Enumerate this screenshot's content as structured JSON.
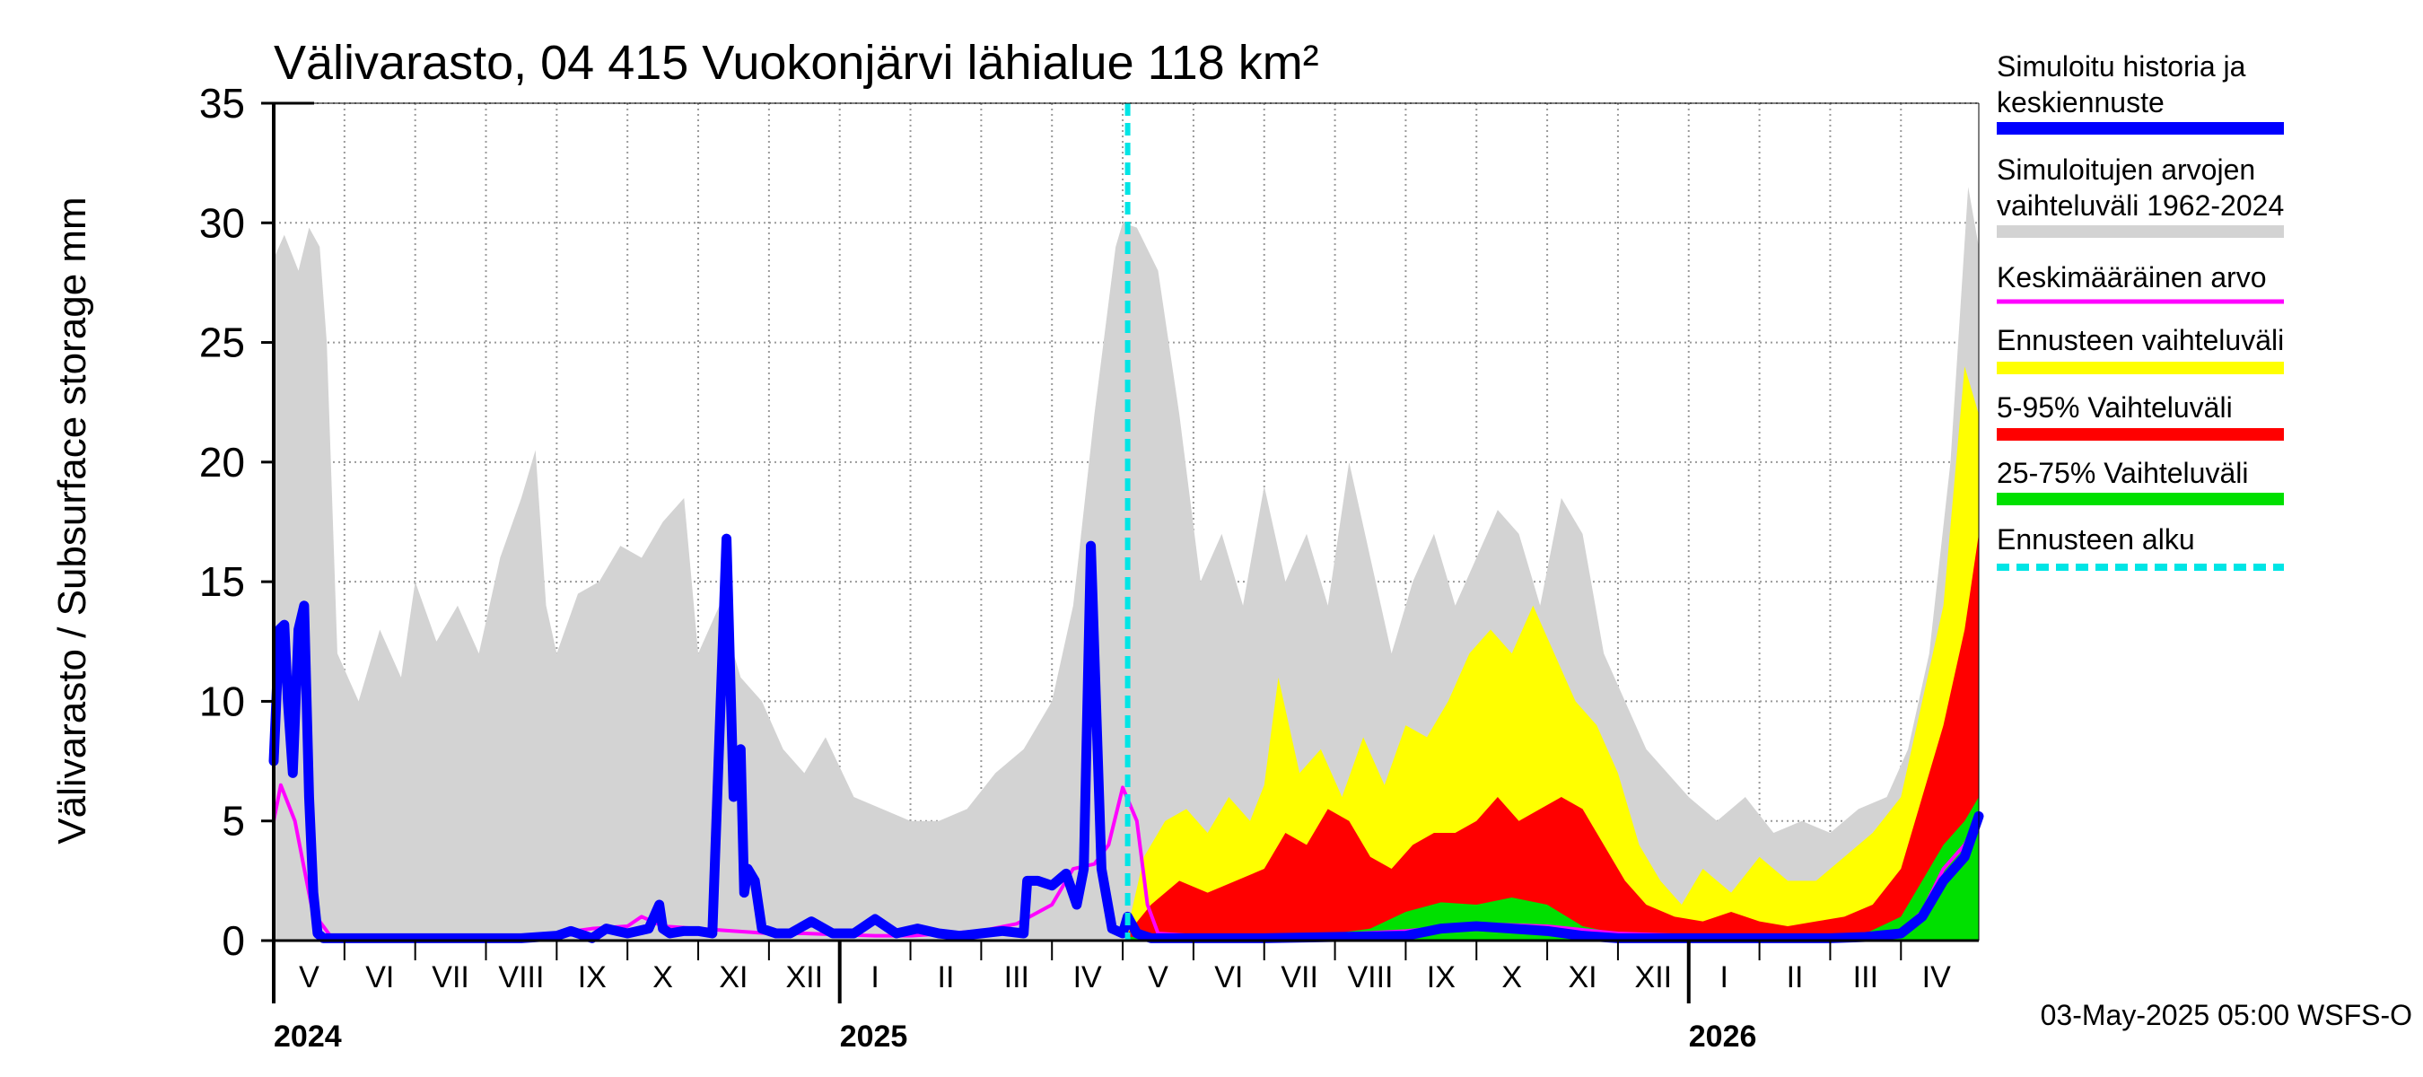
{
  "chart_data": {
    "type": "area",
    "title": "Välivarasto, 04 415 Vuokonjärvi lähialue 118 km²",
    "ylabel": "Välivarasto / Subsurface storage  mm",
    "xlabel": "",
    "ylim": [
      0,
      35
    ],
    "yticks": [
      0,
      5,
      10,
      15,
      20,
      25,
      30,
      35
    ],
    "grid": true,
    "x_unit": "months since 2024-04-01 (0 = start of April 2024)",
    "xlim": [
      1.0,
      25.1
    ],
    "forecast_start": 13.07,
    "months": [
      {
        "label": "V",
        "at": 1.0
      },
      {
        "label": "VI",
        "at": 2.0
      },
      {
        "label": "VII",
        "at": 3.0
      },
      {
        "label": "VIII",
        "at": 4.0
      },
      {
        "label": "IX",
        "at": 5.0
      },
      {
        "label": "X",
        "at": 6.0
      },
      {
        "label": "XI",
        "at": 7.0
      },
      {
        "label": "XII",
        "at": 8.0
      },
      {
        "label": "I",
        "at": 9.0
      },
      {
        "label": "II",
        "at": 10.0
      },
      {
        "label": "III",
        "at": 11.0
      },
      {
        "label": "IV",
        "at": 12.0
      },
      {
        "label": "V",
        "at": 13.0
      },
      {
        "label": "VI",
        "at": 14.0
      },
      {
        "label": "VII",
        "at": 15.0
      },
      {
        "label": "VIII",
        "at": 16.0
      },
      {
        "label": "IX",
        "at": 17.0
      },
      {
        "label": "X",
        "at": 18.0
      },
      {
        "label": "XI",
        "at": 19.0
      },
      {
        "label": "XII",
        "at": 20.0
      },
      {
        "label": "I",
        "at": 21.0
      },
      {
        "label": "II",
        "at": 22.0
      },
      {
        "label": "III",
        "at": 23.0
      },
      {
        "label": "IV",
        "at": 24.0
      }
    ],
    "years": [
      {
        "label": "2024",
        "at": 1.0
      },
      {
        "label": "2025",
        "at": 9.0
      },
      {
        "label": "2026",
        "at": 21.0
      }
    ],
    "series": [
      {
        "name": "Simuloitujen arvojen vaihteluväli 1962-2024",
        "color": "#d3d3d3",
        "x": [
          1.0,
          1.15,
          1.35,
          1.5,
          1.65,
          1.75,
          1.9,
          2.2,
          2.5,
          2.8,
          3.0,
          3.3,
          3.6,
          3.9,
          4.2,
          4.5,
          4.7,
          4.85,
          5.0,
          5.3,
          5.6,
          5.9,
          6.2,
          6.5,
          6.8,
          7.0,
          7.3,
          7.6,
          7.9,
          8.2,
          8.5,
          8.8,
          9.2,
          9.6,
          10.0,
          10.4,
          10.8,
          11.2,
          11.6,
          12.0,
          12.3,
          12.6,
          12.9,
          13.0,
          13.2,
          13.5,
          13.8,
          14.1,
          14.4,
          14.7,
          15.0,
          15.3,
          15.6,
          15.9,
          16.2,
          16.5,
          16.8,
          17.1,
          17.4,
          17.7,
          18.0,
          18.3,
          18.6,
          18.9,
          19.2,
          19.5,
          19.8,
          20.1,
          20.4,
          20.7,
          21.0,
          21.4,
          21.8,
          22.2,
          22.6,
          23.0,
          23.4,
          23.8,
          24.1,
          24.4,
          24.7,
          24.95,
          25.1
        ],
        "high": [
          28.5,
          29.5,
          28.0,
          29.8,
          29.0,
          25.0,
          12.0,
          10.0,
          13.0,
          11.0,
          15.0,
          12.5,
          14.0,
          12.0,
          16.0,
          18.5,
          20.5,
          14.0,
          12.0,
          14.5,
          15.0,
          16.5,
          16.0,
          17.5,
          18.5,
          12.0,
          14.0,
          11.0,
          10.0,
          8.0,
          7.0,
          8.5,
          6.0,
          5.5,
          5.0,
          5.0,
          5.5,
          7.0,
          8.0,
          10.0,
          14.0,
          22.0,
          29.0,
          30.0,
          29.8,
          28.0,
          22.0,
          15.0,
          17.0,
          14.0,
          19.0,
          15.0,
          17.0,
          14.0,
          20.0,
          16.0,
          12.0,
          15.0,
          17.0,
          14.0,
          16.0,
          18.0,
          17.0,
          14.0,
          18.5,
          17.0,
          12.0,
          10.0,
          8.0,
          7.0,
          6.0,
          5.0,
          6.0,
          4.5,
          5.0,
          4.5,
          5.5,
          6.0,
          8.0,
          12.0,
          20.0,
          31.5,
          29.0
        ]
      },
      {
        "name": "Ennusteen vaihteluväli",
        "color": "#ffff00",
        "x": [
          13.07,
          13.3,
          13.6,
          13.9,
          14.2,
          14.5,
          14.8,
          15.0,
          15.2,
          15.5,
          15.8,
          16.1,
          16.4,
          16.7,
          17.0,
          17.3,
          17.6,
          17.9,
          18.2,
          18.5,
          18.8,
          19.1,
          19.4,
          19.7,
          20.0,
          20.3,
          20.6,
          20.9,
          21.2,
          21.6,
          22.0,
          22.4,
          22.8,
          23.2,
          23.6,
          24.0,
          24.3,
          24.6,
          24.9,
          25.1
        ],
        "high": [
          0.5,
          3.5,
          5.0,
          5.5,
          4.5,
          6.0,
          5.0,
          6.5,
          11.0,
          7.0,
          8.0,
          6.0,
          8.5,
          6.5,
          9.0,
          8.5,
          10.0,
          12.0,
          13.0,
          12.0,
          14.0,
          12.0,
          10.0,
          9.0,
          7.0,
          4.0,
          2.5,
          1.5,
          3.0,
          2.0,
          3.5,
          2.5,
          2.5,
          3.5,
          4.5,
          6.0,
          10.0,
          14.0,
          24.0,
          22.0
        ]
      },
      {
        "name": "5-95% Vaihteluväli",
        "color": "#ff0000",
        "x": [
          13.07,
          13.4,
          13.8,
          14.2,
          14.6,
          15.0,
          15.3,
          15.6,
          15.9,
          16.2,
          16.5,
          16.8,
          17.1,
          17.4,
          17.7,
          18.0,
          18.3,
          18.6,
          18.9,
          19.2,
          19.5,
          19.8,
          20.1,
          20.4,
          20.8,
          21.2,
          21.6,
          22.0,
          22.4,
          22.8,
          23.2,
          23.6,
          24.0,
          24.3,
          24.6,
          24.9,
          25.1
        ],
        "high": [
          0.3,
          1.5,
          2.5,
          2.0,
          2.5,
          3.0,
          4.5,
          4.0,
          5.5,
          5.0,
          3.5,
          3.0,
          4.0,
          4.5,
          4.5,
          5.0,
          6.0,
          5.0,
          5.5,
          6.0,
          5.5,
          4.0,
          2.5,
          1.5,
          1.0,
          0.8,
          1.2,
          0.8,
          0.6,
          0.8,
          1.0,
          1.5,
          3.0,
          6.0,
          9.0,
          13.0,
          17.0
        ]
      },
      {
        "name": "25-75% Vaihteluväli",
        "color": "#00e000",
        "x": [
          13.07,
          14.0,
          15.0,
          16.0,
          16.5,
          17.0,
          17.5,
          18.0,
          18.5,
          19.0,
          19.5,
          20.0,
          20.5,
          21.0,
          22.0,
          23.0,
          23.5,
          24.0,
          24.3,
          24.6,
          24.9,
          25.1
        ],
        "high": [
          0.15,
          0.2,
          0.2,
          0.3,
          0.5,
          1.2,
          1.6,
          1.5,
          1.8,
          1.5,
          0.6,
          0.3,
          0.2,
          0.15,
          0.15,
          0.2,
          0.3,
          1.0,
          2.5,
          4.0,
          5.0,
          6.0
        ]
      },
      {
        "name": "Keskimääräinen arvo",
        "color": "#ff00ff",
        "x": [
          1.0,
          1.1,
          1.3,
          1.55,
          1.8,
          2.0,
          2.5,
          3.0,
          3.5,
          4.0,
          4.5,
          5.0,
          5.5,
          6.0,
          6.2,
          6.5,
          7.0,
          7.5,
          8.0,
          8.5,
          9.0,
          9.5,
          10.0,
          10.5,
          11.0,
          11.5,
          12.0,
          12.3,
          12.6,
          12.8,
          13.0,
          13.2,
          13.35,
          13.5,
          14.0,
          15.0,
          16.0,
          17.0,
          18.0,
          19.0,
          20.0,
          21.0,
          22.0,
          23.0,
          23.5,
          24.0,
          24.3,
          24.6,
          24.9,
          25.1
        ],
        "y": [
          5.0,
          6.5,
          5.0,
          1.2,
          0.2,
          0.1,
          0.1,
          0.1,
          0.1,
          0.1,
          0.2,
          0.3,
          0.5,
          0.6,
          1.0,
          0.6,
          0.5,
          0.4,
          0.3,
          0.3,
          0.25,
          0.2,
          0.2,
          0.3,
          0.4,
          0.7,
          1.5,
          3.0,
          3.2,
          4.0,
          6.4,
          5.0,
          1.5,
          0.3,
          0.2,
          0.2,
          0.25,
          0.4,
          0.7,
          0.6,
          0.3,
          0.2,
          0.2,
          0.2,
          0.25,
          0.4,
          1.2,
          3.0,
          4.0,
          5.2
        ]
      },
      {
        "name": "Simuloitu historia ja keskiennuste",
        "color": "#0000ff",
        "x": [
          1.0,
          1.08,
          1.15,
          1.2,
          1.27,
          1.35,
          1.43,
          1.5,
          1.56,
          1.62,
          1.7,
          1.9,
          2.5,
          3.0,
          3.5,
          4.0,
          4.5,
          5.0,
          5.2,
          5.5,
          5.7,
          6.0,
          6.3,
          6.45,
          6.5,
          6.6,
          6.8,
          7.0,
          7.2,
          7.4,
          7.5,
          7.6,
          7.65,
          7.7,
          7.8,
          7.9,
          8.1,
          8.3,
          8.6,
          8.9,
          9.2,
          9.5,
          9.8,
          10.1,
          10.4,
          10.7,
          11.0,
          11.3,
          11.6,
          11.65,
          11.8,
          12.0,
          12.2,
          12.35,
          12.45,
          12.55,
          12.7,
          12.85,
          13.0,
          13.07,
          13.2,
          13.4,
          14.0,
          15.0,
          16.0,
          17.0,
          17.5,
          18.0,
          18.5,
          19.0,
          19.5,
          20.0,
          20.5,
          21.0,
          22.0,
          23.0,
          23.5,
          24.0,
          24.3,
          24.6,
          24.9,
          25.1
        ],
        "y": [
          7.5,
          13.0,
          13.2,
          10.0,
          7.0,
          13.0,
          14.0,
          6.0,
          2.0,
          0.3,
          0.1,
          0.1,
          0.1,
          0.1,
          0.1,
          0.1,
          0.1,
          0.2,
          0.4,
          0.1,
          0.5,
          0.3,
          0.5,
          1.5,
          0.5,
          0.3,
          0.4,
          0.4,
          0.3,
          16.8,
          6.0,
          8.0,
          2.0,
          3.0,
          2.5,
          0.5,
          0.3,
          0.3,
          0.8,
          0.3,
          0.3,
          0.9,
          0.3,
          0.5,
          0.3,
          0.2,
          0.3,
          0.4,
          0.3,
          2.5,
          2.5,
          2.3,
          2.8,
          1.5,
          3.0,
          16.5,
          3.0,
          0.5,
          0.3,
          1.0,
          0.3,
          0.1,
          0.1,
          0.1,
          0.15,
          0.2,
          0.5,
          0.6,
          0.5,
          0.4,
          0.2,
          0.1,
          0.1,
          0.1,
          0.1,
          0.1,
          0.15,
          0.3,
          1.0,
          2.5,
          3.5,
          5.2
        ]
      }
    ],
    "legend": [
      {
        "label": "Simuloitu historia ja keskiennuste",
        "color": "#0000ff",
        "style": "solid"
      },
      {
        "label": "Simuloitujen arvojen vaihteluväli 1962-2024",
        "color": "#d3d3d3",
        "style": "solid"
      },
      {
        "label": "Keskimääräinen arvo",
        "color": "#ff00ff",
        "style": "solid"
      },
      {
        "label": "Ennusteen vaihteluväli",
        "color": "#ffff00",
        "style": "solid"
      },
      {
        "label": "5-95% Vaihteluväli",
        "color": "#ff0000",
        "style": "solid"
      },
      {
        "label": "25-75% Vaihteluväli",
        "color": "#00e000",
        "style": "solid"
      },
      {
        "label": "Ennusteen alku",
        "color": "#00e5e5",
        "style": "dashed"
      }
    ],
    "legend_position": "right",
    "footer": "03-May-2025 05:00 WSFS-O"
  }
}
